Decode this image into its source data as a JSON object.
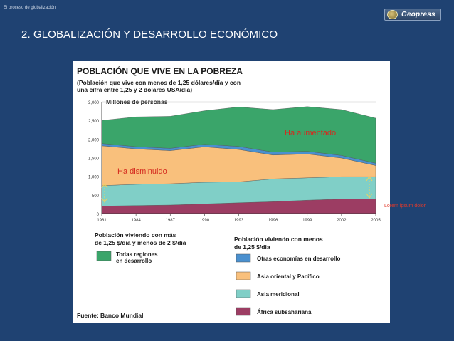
{
  "header": {
    "section_label": "El proceso de globalización",
    "logo_text": "Geopress",
    "slide_title": "2. GLOBALIZACIÓN Y DESARROLLO ECONÓMICO"
  },
  "side_note": "Lorem ipsum dolor",
  "chart_data": {
    "type": "area",
    "title": "POBLACIÓN QUE VIVE EN LA POBREZA",
    "subtitle": [
      "(Población que vive con menos de 1,25 dólares/día y con",
      "una cifra entre 1,25 y 2 dólares USA/día)"
    ],
    "ylabel": "Millones de personas",
    "ylim": [
      0,
      3000
    ],
    "yticks": [
      "0",
      "500",
      "1,000",
      "1,500",
      "2,000",
      "2,500",
      "3,000"
    ],
    "ytick_values": [
      0,
      500,
      1000,
      1500,
      2000,
      2500,
      3000
    ],
    "x": [
      "1981",
      "1984",
      "1987",
      "1990",
      "1993",
      "1996",
      "1999",
      "2002",
      "2005"
    ],
    "stacked": true,
    "series": [
      {
        "name": "África subsahariana",
        "color": "#9c3d63",
        "values": [
          200,
          215,
          230,
          260,
          290,
          320,
          360,
          390,
          390
        ]
      },
      {
        "name": "Asia meridional",
        "color": "#80cfc7",
        "values": [
          550,
          570,
          570,
          580,
          560,
          610,
          600,
          600,
          600
        ]
      },
      {
        "name": "Asia oriental y Pacífico",
        "color": "#f9c07c",
        "values": [
          1070,
          950,
          890,
          950,
          870,
          640,
          640,
          500,
          300
        ]
      },
      {
        "name": "Otras economías en desarrollo",
        "color": "#4a90cf",
        "values": [
          60,
          60,
          60,
          70,
          80,
          80,
          70,
          70,
          60
        ]
      },
      {
        "name": "Todas regiones en desarrollo",
        "color": "#3aa56a",
        "values": [
          620,
          800,
          860,
          900,
          1060,
          1140,
          1200,
          1230,
          1210
        ]
      }
    ],
    "annotations": {
      "increased": "Ha aumentado",
      "decreased": "Ha disminuido"
    },
    "legend": {
      "left_title": [
        "Población viviendo con más",
        "de 1,25 $/dia y menos de 2 $/dia"
      ],
      "left_items": [
        {
          "label": [
            "Todas regiones",
            "en desarrollo"
          ],
          "color": "#3aa56a"
        }
      ],
      "right_title": [
        "Población viviendo con menos",
        "de 1,25 $/dia"
      ],
      "right_items": [
        {
          "label": "Otras economías en desarrollo",
          "color": "#4a90cf"
        },
        {
          "label": "Asia oriental y Pacífico",
          "color": "#f9c07c"
        },
        {
          "label": "Asia meridional",
          "color": "#80cfc7"
        },
        {
          "label": "África subsahariana",
          "color": "#9c3d63"
        }
      ]
    },
    "source": "Fuente: Banco Mundial",
    "grid": true
  }
}
